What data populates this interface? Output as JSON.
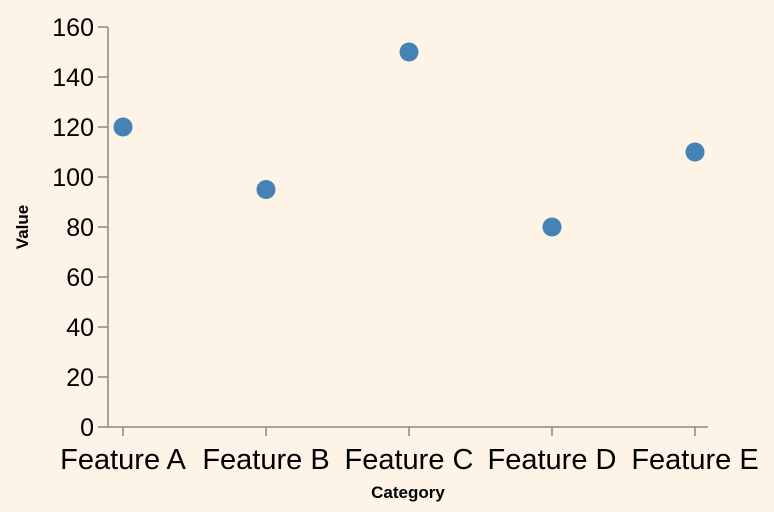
{
  "chart_data": {
    "type": "scatter",
    "title": "",
    "xlabel": "Category",
    "ylabel": "Value",
    "categories": [
      "Feature A",
      "Feature B",
      "Feature C",
      "Feature D",
      "Feature E"
    ],
    "values": [
      120,
      95,
      150,
      80,
      110
    ],
    "yticks": [
      0,
      20,
      40,
      60,
      80,
      100,
      120,
      140,
      160
    ],
    "ylim": [
      0,
      160
    ],
    "grid": false,
    "point_color": "#4682b4",
    "axis_color": "#888888",
    "background": "#fdf3e6"
  }
}
